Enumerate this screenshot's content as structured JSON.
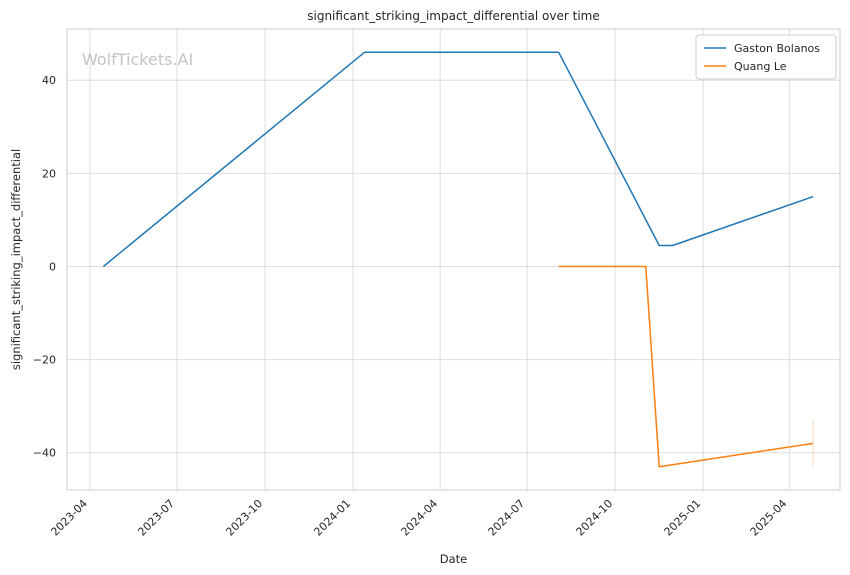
{
  "chart_data": {
    "type": "line",
    "title": "significant_striking_impact_differential over time",
    "xlabel": "Date",
    "ylabel": "significant_striking_impact_differential",
    "watermark": "WolfTickets.AI",
    "x_ticks": [
      "2023-04-01",
      "2023-07-01",
      "2023-10-01",
      "2024-01-01",
      "2024-04-01",
      "2024-07-01",
      "2024-10-01",
      "2025-01-01",
      "2025-04-01"
    ],
    "x_tick_labels": [
      "2023-04",
      "2023-07",
      "2023-10",
      "2024-01",
      "2024-04",
      "2024-07",
      "2024-10",
      "2025-01",
      "2025-04"
    ],
    "xlim": [
      "2023-03-08",
      "2025-05-24"
    ],
    "y_ticks": [
      40,
      20,
      0,
      -20,
      -40
    ],
    "y_tick_labels": [
      "40",
      "20",
      "0",
      "−20",
      "−40"
    ],
    "ylim": [
      -48,
      51
    ],
    "grid": true,
    "legend_position": "top-right",
    "series": [
      {
        "name": "Gaston Bolanos",
        "color": "#1f77b4",
        "x": [
          "2023-04-15",
          "2024-01-13",
          "2024-08-03",
          "2024-11-16",
          "2024-11-30",
          "2025-04-26"
        ],
        "y": [
          0,
          46,
          46,
          4.5,
          4.5,
          15
        ]
      },
      {
        "name": "Quang Le",
        "color": "#ff7f0e",
        "x": [
          "2024-08-03",
          "2024-11-02",
          "2024-11-16",
          "2025-04-26"
        ],
        "y": [
          0,
          0,
          -43,
          -38
        ]
      }
    ],
    "extra_marks": [
      {
        "x": "2025-04-26",
        "y_range": [
          -43,
          -33
        ],
        "color": "#ffd9b3"
      }
    ]
  }
}
